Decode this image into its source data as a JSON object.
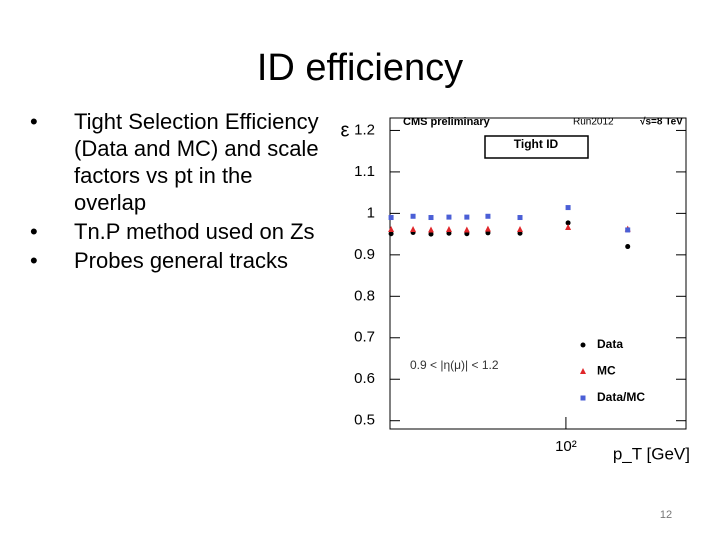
{
  "slide": {
    "title": "ID efficiency",
    "bullets": [
      "Tight Selection Efficiency (Data and MC) and scale factors vs pt in the overlap",
      "Tn.P method used on Zs",
      "Probes general tracks"
    ],
    "page_number": "12"
  },
  "chart_data": {
    "type": "scatter",
    "header": "CMS preliminary",
    "run": "Run2012",
    "energy": "√s=8 TeV",
    "selection": "Tight ID",
    "annotation": "0.9 < |η(μ)| < 1.2",
    "x_label": "p_T [GeV]",
    "y_label": "ε",
    "x": [
      20.2,
      24.7,
      29.1,
      34.3,
      40.4,
      49,
      65.7,
      102,
      176
    ],
    "xscale": "log",
    "xlim": [
      20,
      300
    ],
    "xticks": [
      {
        "value": 100,
        "label": "10²"
      }
    ],
    "ylim": [
      0.48,
      1.23
    ],
    "yticks": [
      0.5,
      0.6,
      0.7,
      0.8,
      0.9,
      1,
      1.1,
      1.2
    ],
    "legend": "lower right",
    "series": [
      {
        "name": "Data",
        "color": "#000000",
        "marker": "circle",
        "values": [
          0.951,
          0.954,
          0.95,
          0.952,
          0.951,
          0.953,
          0.952,
          0.977,
          0.92
        ]
      },
      {
        "name": "MC",
        "color": "#e0262a",
        "marker": "triangle",
        "values": [
          0.961,
          0.961,
          0.96,
          0.961,
          0.96,
          0.962,
          0.961,
          0.966,
          0.962
        ]
      },
      {
        "name": "Data/MC",
        "color": "#4b5fd6",
        "marker": "square",
        "values": [
          0.99,
          0.993,
          0.99,
          0.991,
          0.991,
          0.993,
          0.99,
          1.014,
          0.96
        ]
      }
    ]
  }
}
